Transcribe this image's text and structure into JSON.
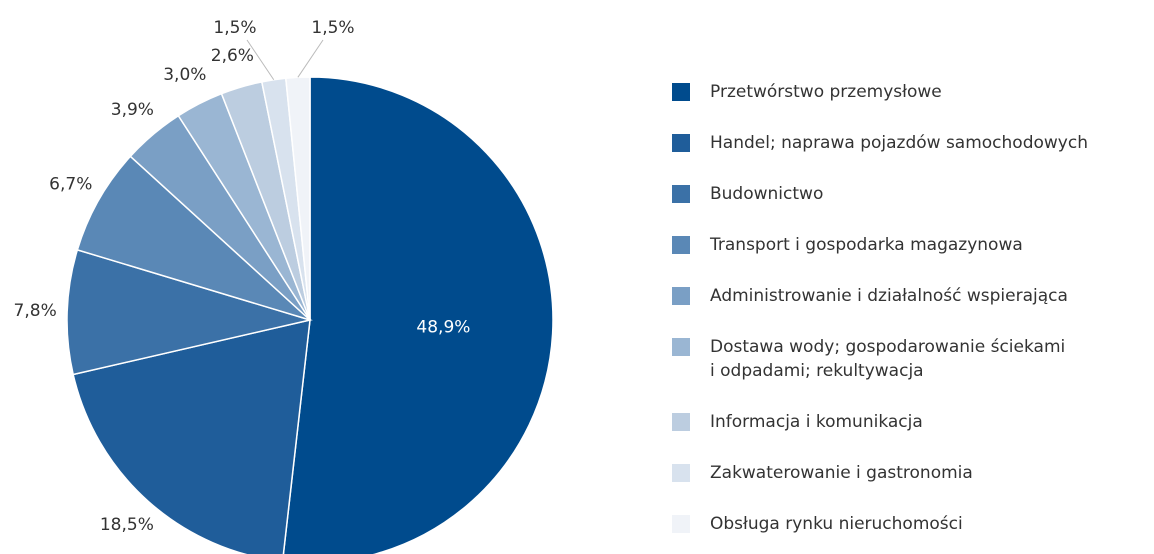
{
  "chart_data": {
    "type": "pie",
    "categories": [
      "Przetwórstwo przemysłowe",
      "Handel; naprawa pojazdów samochodowych",
      "Budownictwo",
      "Transport i gospodarka magazynowa",
      "Administrowanie i działalność wspierająca",
      "Dostawa wody; gospodarowanie ściekami\ni odpadami; rekultywacja",
      "Informacja i komunikacja",
      "Zakwaterowanie i gastronomia",
      "Obsługa rynku nieruchomości"
    ],
    "values": [
      48.9,
      18.5,
      7.8,
      6.7,
      3.9,
      3.0,
      2.6,
      1.5,
      1.5
    ],
    "value_labels": [
      "48,9%",
      "18,5%",
      "7,8%",
      "6,7%",
      "3,9%",
      "3,0%",
      "2,6%",
      "1,5%",
      "1,5%"
    ],
    "colors": [
      "#004b8d",
      "#1f5d9a",
      "#3b71a7",
      "#5a88b6",
      "#7a9fc5",
      "#9ab6d3",
      "#bccde0",
      "#d8e2ee",
      "#f0f3f8"
    ],
    "legend": "right"
  }
}
